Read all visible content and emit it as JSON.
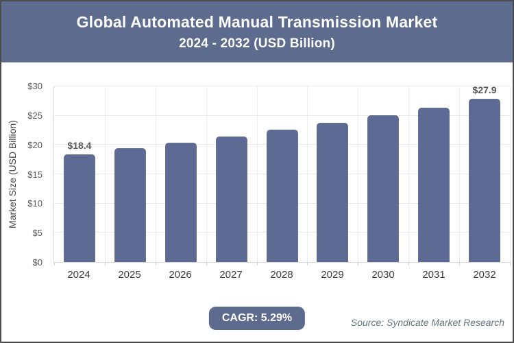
{
  "header": {
    "title_line1": "Global Automated Manual Transmission Market",
    "title_line2": "2024 - 2032 (USD Billion)"
  },
  "chart_data": {
    "type": "bar",
    "title": "Global Automated Manual Transmission Market 2024 - 2032 (USD Billion)",
    "categories": [
      "2024",
      "2025",
      "2026",
      "2027",
      "2028",
      "2029",
      "2030",
      "2031",
      "2032"
    ],
    "values": [
      18.4,
      19.4,
      20.4,
      21.5,
      22.6,
      23.8,
      25.1,
      26.4,
      27.9
    ],
    "bar_labels": [
      "$18.4",
      "",
      "",
      "",
      "",
      "",
      "",
      "",
      "$27.9"
    ],
    "xlabel": "",
    "ylabel": "Market Size (USD Billion)",
    "ylim": [
      0,
      30
    ],
    "y_ticks": [
      "$0",
      "$5",
      "$10",
      "$15",
      "$20",
      "$25",
      "$30"
    ],
    "grid": true,
    "legend": "none",
    "bar_color": "#5d6b94"
  },
  "footer": {
    "cagr_label": "CAGR: 5.29%",
    "source": "Source: Syndicate Market Research"
  },
  "colors": {
    "header_bg": "#5d6b8f",
    "bar": "#5d6b94",
    "badge_bg": "#5d6b8f",
    "gridline": "#e9e9e9",
    "axis": "#d6d6d6",
    "tick_text": "#595959",
    "frame_border": "#4c4c4c",
    "source_text": "#64747e"
  }
}
